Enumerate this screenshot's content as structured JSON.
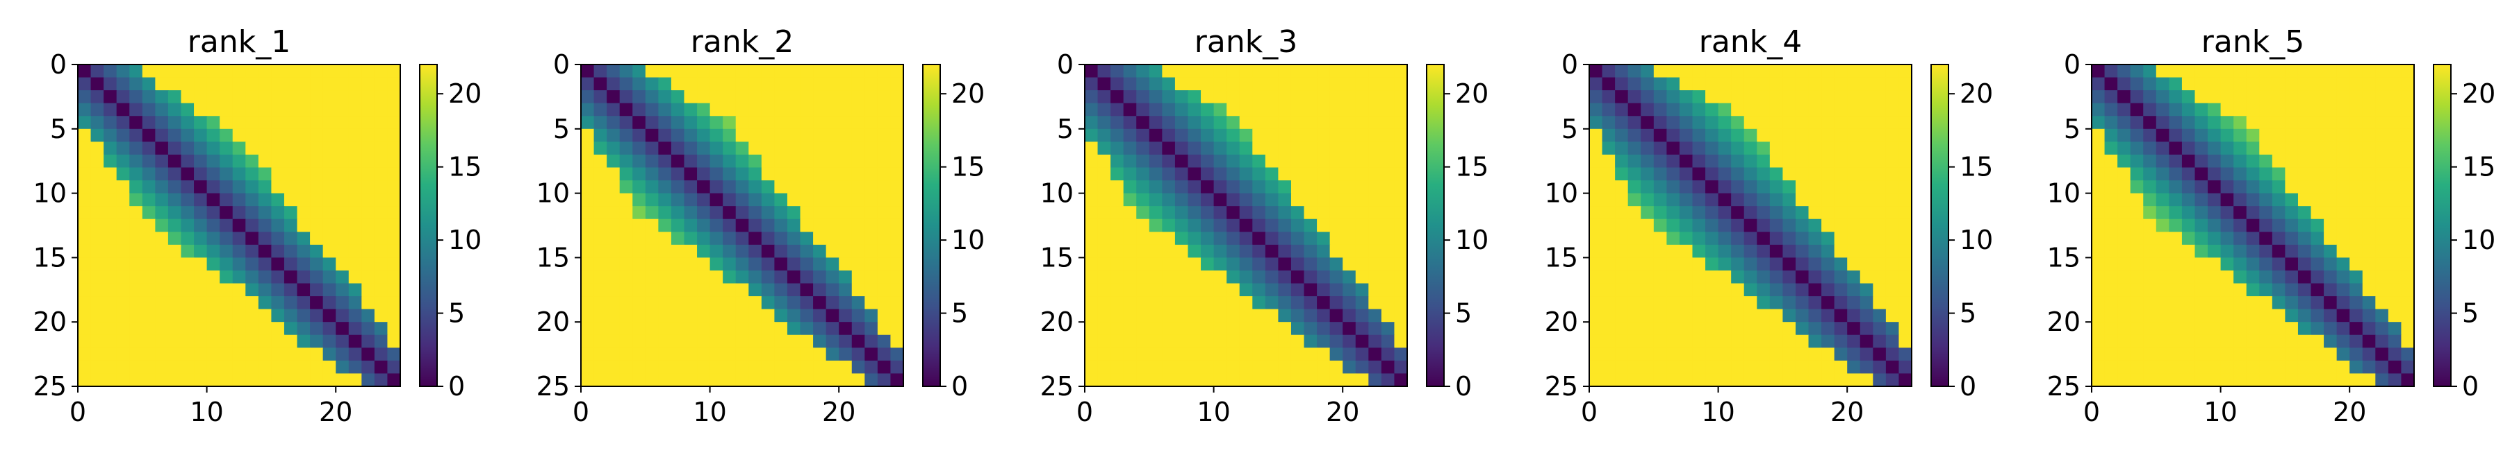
{
  "figure": {
    "panel_count": 5
  },
  "chart_data": [
    {
      "type": "heatmap",
      "title": "rank_1",
      "colormap": "viridis",
      "xlim": [
        0,
        25
      ],
      "ylim": [
        25,
        0
      ],
      "xticks": [
        0,
        10,
        20
      ],
      "yticks": [
        0,
        5,
        10,
        15,
        20,
        25
      ],
      "colorbar": {
        "vmin": 0,
        "vmax": 22,
        "ticks": [
          0,
          5,
          10,
          15,
          20
        ]
      },
      "size": 25,
      "band_width": [
        4,
        4,
        5,
        5,
        6,
        6,
        7,
        8,
        8,
        8,
        8,
        7,
        7,
        6,
        6,
        5,
        5,
        4,
        4,
        4,
        4,
        4,
        3,
        3,
        2
      ],
      "value_scale": 1.0
    },
    {
      "type": "heatmap",
      "title": "rank_2",
      "colormap": "viridis",
      "xlim": [
        0,
        25
      ],
      "ylim": [
        25,
        0
      ],
      "xticks": [
        0,
        10,
        20
      ],
      "yticks": [
        0,
        5,
        10,
        15,
        20,
        25
      ],
      "colorbar": {
        "vmin": 0,
        "vmax": 22,
        "ticks": [
          0,
          5,
          10,
          15,
          20
        ]
      },
      "size": 25,
      "band_width": [
        4,
        5,
        5,
        6,
        7,
        8,
        8,
        8,
        8,
        8,
        7,
        7,
        6,
        6,
        5,
        5,
        5,
        4,
        4,
        4,
        4,
        3,
        3,
        2,
        2
      ],
      "value_scale": 1.0
    },
    {
      "type": "heatmap",
      "title": "rank_3",
      "colormap": "viridis",
      "xlim": [
        0,
        25
      ],
      "ylim": [
        25,
        0
      ],
      "xticks": [
        0,
        10,
        20
      ],
      "yticks": [
        0,
        5,
        10,
        15,
        20,
        25
      ],
      "colorbar": {
        "vmin": 0,
        "vmax": 22,
        "ticks": [
          0,
          5,
          10,
          15,
          20
        ]
      },
      "size": 25,
      "band_width": [
        5,
        5,
        6,
        7,
        8,
        8,
        8,
        8,
        8,
        8,
        8,
        7,
        7,
        6,
        6,
        6,
        5,
        5,
        5,
        4,
        4,
        4,
        3,
        3,
        2
      ],
      "value_scale": 0.9
    },
    {
      "type": "heatmap",
      "title": "rank_4",
      "colormap": "viridis",
      "xlim": [
        0,
        25
      ],
      "ylim": [
        25,
        0
      ],
      "xticks": [
        0,
        10,
        20
      ],
      "yticks": [
        0,
        5,
        10,
        15,
        20,
        25
      ],
      "colorbar": {
        "vmin": 0,
        "vmax": 22,
        "ticks": [
          0,
          5,
          10,
          15,
          20
        ]
      },
      "size": 25,
      "band_width": [
        4,
        5,
        6,
        7,
        8,
        8,
        9,
        9,
        9,
        8,
        8,
        8,
        7,
        7,
        6,
        6,
        5,
        5,
        5,
        4,
        4,
        4,
        3,
        3,
        2
      ],
      "value_scale": 0.9
    },
    {
      "type": "heatmap",
      "title": "rank_5",
      "colormap": "viridis",
      "xlim": [
        0,
        25
      ],
      "ylim": [
        25,
        0
      ],
      "xticks": [
        0,
        10,
        20
      ],
      "yticks": [
        0,
        5,
        10,
        15,
        20,
        25
      ],
      "colorbar": {
        "vmin": 0,
        "vmax": 22,
        "ticks": [
          0,
          5,
          10,
          15,
          20
        ]
      },
      "size": 25,
      "band_width": [
        4,
        5,
        5,
        6,
        7,
        8,
        8,
        9,
        8,
        8,
        8,
        7,
        7,
        6,
        6,
        5,
        5,
        5,
        4,
        4,
        4,
        3,
        3,
        3,
        2
      ],
      "value_scale": 1.0
    }
  ]
}
